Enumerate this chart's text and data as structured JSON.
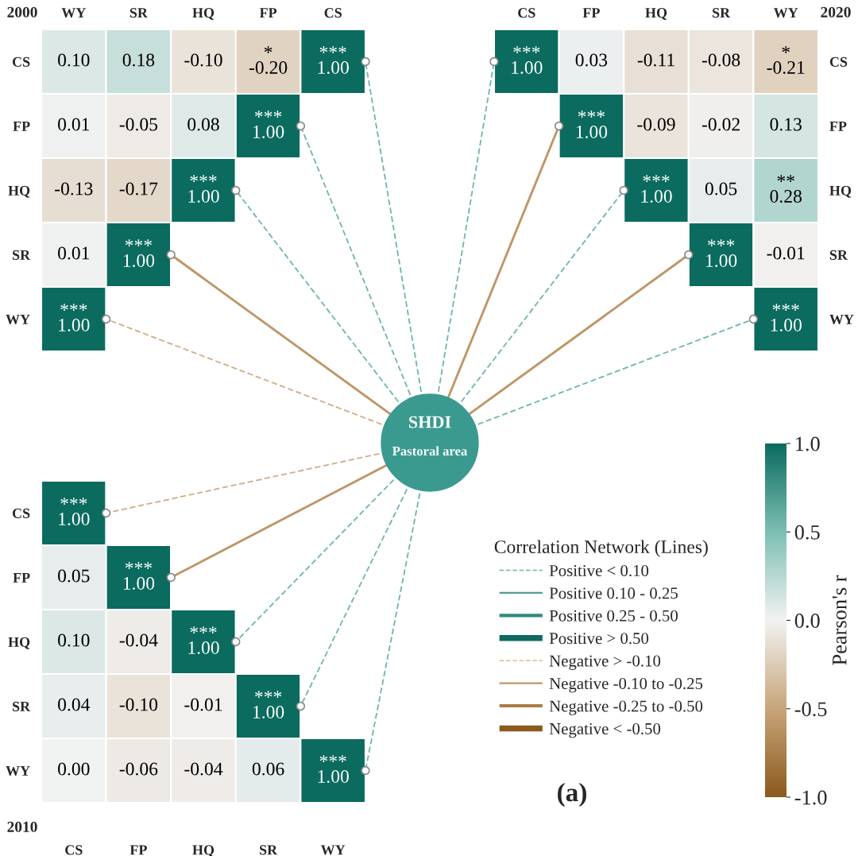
{
  "chart_data": [
    {
      "type": "heatmap",
      "title": "2000",
      "categories": [
        "WY",
        "SR",
        "HQ",
        "FP",
        "CS"
      ],
      "y_categories": [
        "CS",
        "FP",
        "HQ",
        "SR",
        "WY"
      ],
      "cells": [
        [
          0.1,
          0.18,
          -0.1,
          -0.2,
          1.0
        ],
        [
          0.01,
          -0.05,
          0.08,
          1.0,
          null
        ],
        [
          -0.13,
          -0.17,
          1.0,
          null,
          null
        ],
        [
          0.01,
          1.0,
          null,
          null,
          null
        ],
        [
          1.0,
          null,
          null,
          null,
          null
        ]
      ],
      "cell_labels": [
        [
          "0.10",
          "0.18",
          "-0.10",
          "*\n-0.20",
          "***\n1.00"
        ],
        [
          "0.01",
          "-0.05",
          "0.08",
          "***\n1.00",
          null
        ],
        [
          "-0.13",
          "-0.17",
          "***\n1.00",
          null,
          null
        ],
        [
          "0.01",
          "***\n1.00",
          null,
          null,
          null
        ],
        [
          "***\n1.00",
          null,
          null,
          null,
          null
        ]
      ]
    },
    {
      "type": "heatmap",
      "title": "2020",
      "categories": [
        "CS",
        "FP",
        "HQ",
        "SR",
        "WY"
      ],
      "y_categories": [
        "CS",
        "FP",
        "HQ",
        "SR",
        "WY"
      ],
      "cells": [
        [
          1.0,
          0.03,
          -0.11,
          -0.08,
          -0.21
        ],
        [
          null,
          1.0,
          -0.09,
          -0.02,
          0.13
        ],
        [
          null,
          null,
          1.0,
          0.05,
          0.28
        ],
        [
          null,
          null,
          null,
          1.0,
          -0.01
        ],
        [
          null,
          null,
          null,
          null,
          1.0
        ]
      ],
      "cell_labels": [
        [
          "***\n1.00",
          "0.03",
          "-0.11",
          "-0.08",
          "*\n-0.21"
        ],
        [
          null,
          "***\n1.00",
          "-0.09",
          "-0.02",
          "0.13"
        ],
        [
          null,
          null,
          "***\n1.00",
          "0.05",
          "**\n0.28"
        ],
        [
          null,
          null,
          null,
          "***\n1.00",
          "-0.01"
        ],
        [
          null,
          null,
          null,
          null,
          "***\n1.00"
        ]
      ]
    },
    {
      "type": "heatmap",
      "title": "2010",
      "categories": [
        "CS",
        "FP",
        "HQ",
        "SR",
        "WY"
      ],
      "y_categories": [
        "CS",
        "FP",
        "HQ",
        "SR",
        "WY"
      ],
      "cells": [
        [
          1.0,
          null,
          null,
          null,
          null
        ],
        [
          0.05,
          1.0,
          null,
          null,
          null
        ],
        [
          0.1,
          -0.04,
          1.0,
          null,
          null
        ],
        [
          0.04,
          -0.1,
          -0.01,
          1.0,
          null
        ],
        [
          0.0,
          -0.06,
          -0.04,
          0.06,
          1.0
        ]
      ],
      "cell_labels": [
        [
          "***\n1.00",
          null,
          null,
          null,
          null
        ],
        [
          "0.05",
          "***\n1.00",
          null,
          null,
          null
        ],
        [
          "0.10",
          "-0.04",
          "***\n1.00",
          null,
          null
        ],
        [
          "0.04",
          "-0.10",
          "-0.01",
          "***\n1.00",
          null
        ],
        [
          "0.00",
          "-0.06",
          "-0.04",
          "0.06",
          "***\n1.00"
        ]
      ],
      "clim": [
        -1.0,
        1.0
      ],
      "cticks": [
        {
          "value": -1.0,
          "label": "-1.0"
        },
        {
          "value": -0.5,
          "label": "-0.5"
        },
        {
          "value": 0.0,
          "label": "0.0"
        },
        {
          "value": 0.5,
          "label": "0.5"
        },
        {
          "value": 1.0,
          "label": "1.0"
        }
      ],
      "clabel": "Pearson's r"
    },
    {
      "type": "other",
      "title": "SHDI",
      "subtitle": "Pastoral area",
      "legend_title": "Correlation Network (Lines)",
      "legend": "bottom right",
      "annotations": [
        "(a)"
      ],
      "series": [
        {
          "name": "Positive < 0.10",
          "color": "#6fb5a9",
          "line_style": "dashed"
        },
        {
          "name": "Positive 0.10 - 0.25",
          "color": "#4f9f94",
          "line_style": "solid"
        },
        {
          "name": "Positive 0.25 - 0.50",
          "color": "#2f8a7f",
          "line_style": "solid"
        },
        {
          "name": "Positive > 0.50",
          "color": "#0d6b60",
          "line_style": "solid"
        },
        {
          "name": "Negative > -0.10",
          "color": "#cdae85",
          "line_style": "dashed"
        },
        {
          "name": "Negative -0.10 to -0.25",
          "color": "#bf9667",
          "line_style": "solid"
        },
        {
          "name": "Negative -0.25 to -0.50",
          "color": "#a97b45",
          "line_style": "solid"
        },
        {
          "name": "Negative < -0.50",
          "color": "#8b5a1c",
          "line_style": "solid"
        }
      ]
    }
  ]
}
